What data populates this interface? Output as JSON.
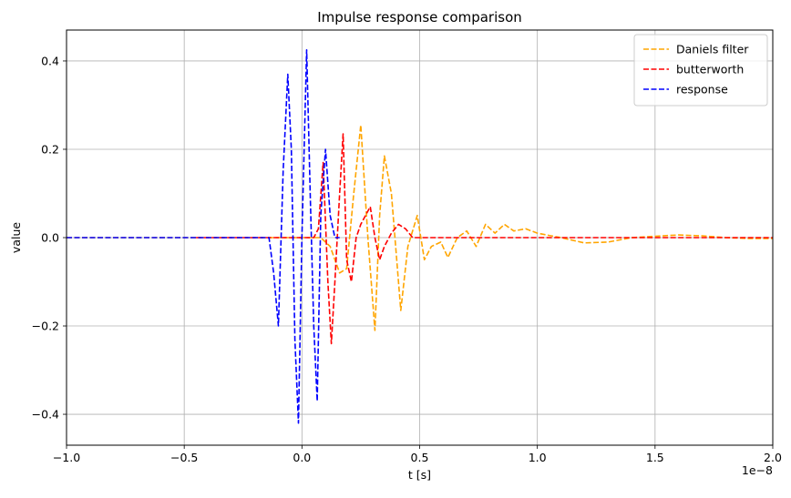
{
  "chart_data": {
    "type": "line",
    "title": "Impulse response comparison",
    "xlabel": "t [s]",
    "ylabel": "value",
    "x_offset_label": "1e−8",
    "xlim": [
      -1.0,
      2.0
    ],
    "ylim": [
      -0.47,
      0.47
    ],
    "x_scale_factor": 1e-08,
    "xticks": [
      -1.0,
      -0.5,
      0.0,
      0.5,
      1.0,
      1.5,
      2.0
    ],
    "xtick_labels": [
      "−1.0",
      "−0.5",
      "0.0",
      "0.5",
      "1.0",
      "1.5",
      "2.0"
    ],
    "yticks": [
      -0.4,
      -0.2,
      0.0,
      0.2,
      0.4
    ],
    "ytick_labels": [
      "−0.4",
      "−0.2",
      "0.0",
      "0.2",
      "0.4"
    ],
    "grid": true,
    "legend_position": "top-right",
    "series": [
      {
        "name": "Daniels filter",
        "color": "#ffa500",
        "x": [
          -1.0,
          -0.5,
          0.0,
          0.08,
          0.12,
          0.16,
          0.19,
          0.22,
          0.25,
          0.28,
          0.31,
          0.33,
          0.35,
          0.38,
          0.42,
          0.45,
          0.49,
          0.52,
          0.55,
          0.59,
          0.62,
          0.66,
          0.7,
          0.74,
          0.78,
          0.82,
          0.86,
          0.9,
          0.95,
          1.0,
          1.05,
          1.1,
          1.2,
          1.3,
          1.4,
          1.5,
          1.6,
          1.7,
          1.8,
          1.9,
          2.0
        ],
        "y": [
          0.0,
          0.0,
          0.0,
          0.0,
          -0.02,
          -0.08,
          -0.07,
          0.1,
          0.255,
          0.0,
          -0.21,
          0.05,
          0.185,
          0.1,
          -0.165,
          -0.02,
          0.05,
          -0.05,
          -0.02,
          -0.01,
          -0.045,
          0.0,
          0.015,
          -0.02,
          0.03,
          0.01,
          0.03,
          0.015,
          0.02,
          0.01,
          0.005,
          0.0,
          -0.012,
          -0.01,
          0.0,
          0.003,
          0.006,
          0.004,
          0.0,
          -0.002,
          -0.002
        ]
      },
      {
        "name": "butterworth",
        "color": "#ff0000",
        "x": [
          -0.45,
          0.0,
          0.05,
          0.07,
          0.09,
          0.11,
          0.125,
          0.14,
          0.16,
          0.175,
          0.19,
          0.21,
          0.23,
          0.25,
          0.27,
          0.29,
          0.31,
          0.33,
          0.35,
          0.38,
          0.41,
          0.44,
          0.47,
          0.55,
          1.0,
          1.5,
          2.0
        ],
        "y": [
          0.0,
          0.0,
          0.0,
          0.02,
          0.17,
          -0.1,
          -0.24,
          -0.1,
          0.1,
          0.235,
          -0.05,
          -0.1,
          0.0,
          0.03,
          0.05,
          0.07,
          0.0,
          -0.05,
          -0.02,
          0.01,
          0.03,
          0.02,
          0.0,
          0.0,
          0.0,
          0.0,
          0.0
        ]
      },
      {
        "name": "response",
        "color": "#0000ff",
        "x": [
          -1.0,
          -0.17,
          -0.14,
          -0.12,
          -0.1,
          -0.08,
          -0.06,
          -0.045,
          -0.03,
          -0.015,
          0.0,
          0.02,
          0.035,
          0.05,
          0.065,
          0.08,
          0.1,
          0.12,
          0.14,
          0.16
        ],
        "y": [
          0.0,
          0.0,
          0.0,
          -0.08,
          -0.2,
          0.15,
          0.37,
          0.2,
          -0.23,
          -0.42,
          0.0,
          0.425,
          0.1,
          -0.2,
          -0.37,
          0.05,
          0.2,
          0.05,
          0.0,
          0.0
        ]
      }
    ]
  }
}
